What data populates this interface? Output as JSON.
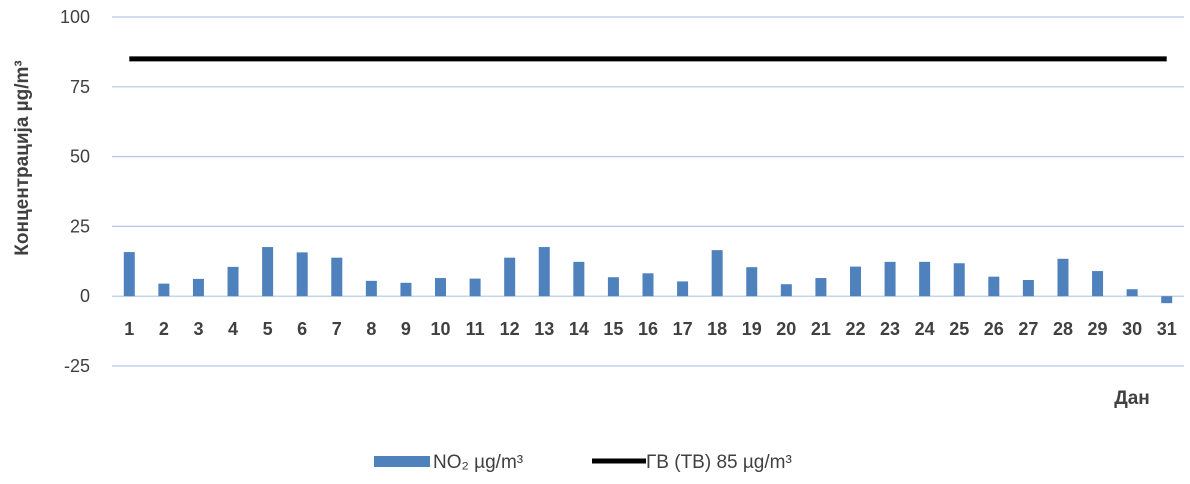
{
  "chart_data": {
    "type": "bar",
    "title": "",
    "xlabel": "Дан",
    "ylabel": "Концентрација µg/m³",
    "ylim": [
      -25,
      100
    ],
    "yticks": [
      -25,
      0,
      25,
      50,
      75,
      100
    ],
    "grid": true,
    "legend_position": "bottom",
    "categories": [
      "1",
      "2",
      "3",
      "4",
      "5",
      "6",
      "7",
      "8",
      "9",
      "10",
      "11",
      "12",
      "13",
      "14",
      "15",
      "16",
      "17",
      "18",
      "19",
      "20",
      "21",
      "22",
      "23",
      "24",
      "25",
      "26",
      "27",
      "28",
      "29",
      "30",
      "31"
    ],
    "series": [
      {
        "name": "NO₂  µg/m³",
        "type": "bar",
        "color": "#4f81bd",
        "values": [
          15.8,
          4.5,
          6.2,
          10.5,
          17.6,
          15.7,
          13.8,
          5.5,
          4.8,
          6.5,
          6.3,
          13.8,
          17.6,
          12.3,
          6.8,
          8.2,
          5.3,
          16.5,
          10.4,
          4.3,
          6.5,
          10.6,
          12.3,
          12.3,
          11.8,
          7.0,
          5.8,
          13.4,
          9.0,
          2.5,
          -2.5
        ]
      },
      {
        "name": "ГВ (ТВ) 85 µg/m³",
        "type": "line",
        "color": "#000000",
        "values": [
          85,
          85,
          85,
          85,
          85,
          85,
          85,
          85,
          85,
          85,
          85,
          85,
          85,
          85,
          85,
          85,
          85,
          85,
          85,
          85,
          85,
          85,
          85,
          85,
          85,
          85,
          85,
          85,
          85,
          85,
          85
        ]
      }
    ]
  }
}
